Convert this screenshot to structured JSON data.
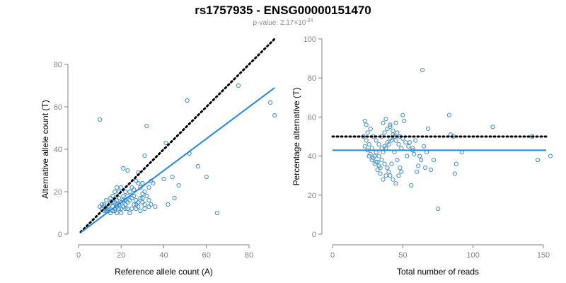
{
  "header": {
    "title": "rs1757935 - ENSG00000151470",
    "subtitle_prefix": "p-value: 2.17×10",
    "subtitle_exponent": "-24"
  },
  "colors": {
    "point": "#3a8fd0",
    "fit_line": "#1e88e5",
    "reference_line": "#000000",
    "axis": "#808080"
  },
  "chart_data": [
    {
      "type": "scatter",
      "xlabel": "Reference allele count (A)",
      "ylabel": "Alternative allele count (T)",
      "xlim": [
        0,
        92
      ],
      "ylim": [
        0,
        80
      ],
      "xticks": [
        0,
        20,
        40,
        60,
        80
      ],
      "yticks": [
        0,
        20,
        40,
        60,
        80
      ],
      "reference_line": {
        "style": "dotted",
        "slope": 1,
        "intercept": 0,
        "x_range": [
          1,
          92
        ]
      },
      "fit_line": {
        "slope": 0.75,
        "intercept": 0,
        "x_range": [
          1,
          92
        ]
      },
      "points": [
        [
          10,
          54
        ],
        [
          32,
          51
        ],
        [
          51,
          63
        ],
        [
          75,
          70
        ],
        [
          90,
          62
        ],
        [
          92,
          56
        ],
        [
          41,
          43
        ],
        [
          52,
          38
        ],
        [
          56,
          32
        ],
        [
          60,
          27
        ],
        [
          65,
          10
        ],
        [
          47,
          23
        ],
        [
          44,
          27
        ],
        [
          40,
          26
        ],
        [
          45,
          17
        ],
        [
          42,
          14
        ],
        [
          31,
          37
        ],
        [
          28,
          29
        ],
        [
          21,
          31
        ],
        [
          23,
          30
        ],
        [
          27,
          25
        ],
        [
          30,
          24
        ],
        [
          33,
          22
        ],
        [
          34,
          25
        ],
        [
          36,
          13
        ],
        [
          31,
          12
        ],
        [
          24,
          10
        ],
        [
          18,
          10
        ],
        [
          19,
          12
        ],
        [
          20,
          15
        ],
        [
          22,
          20
        ],
        [
          20,
          22
        ],
        [
          18,
          22
        ],
        [
          17,
          20
        ],
        [
          16,
          18
        ],
        [
          15,
          15
        ],
        [
          14,
          13
        ],
        [
          13,
          12
        ],
        [
          12,
          11
        ],
        [
          11,
          14
        ],
        [
          10,
          13
        ],
        [
          12,
          14
        ],
        [
          13,
          11
        ],
        [
          14,
          12
        ],
        [
          15,
          10
        ],
        [
          16,
          11
        ],
        [
          17,
          12
        ],
        [
          18,
          13
        ],
        [
          19,
          14
        ],
        [
          20,
          12
        ],
        [
          21,
          13
        ],
        [
          22,
          14
        ],
        [
          23,
          15
        ],
        [
          24,
          16
        ],
        [
          25,
          17
        ],
        [
          26,
          18
        ],
        [
          27,
          16
        ],
        [
          28,
          15
        ],
        [
          29,
          17
        ],
        [
          30,
          19
        ],
        [
          31,
          20
        ],
        [
          32,
          18
        ],
        [
          33,
          16
        ],
        [
          34,
          14
        ],
        [
          35,
          24
        ],
        [
          18,
          16
        ],
        [
          19,
          17
        ],
        [
          21,
          16
        ],
        [
          22,
          12
        ],
        [
          23,
          18
        ],
        [
          24,
          20
        ],
        [
          25,
          22
        ],
        [
          26,
          21
        ],
        [
          27,
          14
        ],
        [
          28,
          13
        ],
        [
          29,
          11
        ],
        [
          30,
          15
        ],
        [
          15,
          17
        ],
        [
          16,
          13
        ],
        [
          17,
          15
        ],
        [
          12,
          13
        ],
        [
          13,
          16
        ],
        [
          14,
          11
        ],
        [
          11,
          12
        ],
        [
          20,
          10
        ],
        [
          21,
          18
        ],
        [
          19,
          20
        ],
        [
          26,
          14
        ],
        [
          25,
          12
        ],
        [
          28,
          24
        ],
        [
          23,
          12
        ],
        [
          22,
          16
        ],
        [
          18,
          14
        ],
        [
          17,
          11
        ],
        [
          16,
          15
        ],
        [
          27,
          12
        ],
        [
          29,
          22
        ],
        [
          30,
          17
        ],
        [
          31,
          14
        ],
        [
          33,
          13
        ]
      ]
    },
    {
      "type": "scatter",
      "xlabel": "Total number of reads",
      "ylabel": "Percentage alternative (T)",
      "xlim": [
        0,
        155
      ],
      "ylim": [
        0,
        100
      ],
      "xticks": [
        0,
        50,
        100,
        150
      ],
      "yticks": [
        0,
        20,
        40,
        60,
        80,
        100
      ],
      "reference_line": {
        "style": "dotted",
        "y": 50,
        "x_range": [
          0,
          152
        ]
      },
      "fit_line": {
        "y": 43,
        "x_range": [
          0,
          152
        ]
      },
      "points": [
        [
          64,
          84
        ],
        [
          83,
          61
        ],
        [
          114,
          55
        ],
        [
          50,
          61
        ],
        [
          38,
          59
        ],
        [
          23,
          58
        ],
        [
          24,
          56
        ],
        [
          36,
          57
        ],
        [
          41,
          55
        ],
        [
          45,
          57
        ],
        [
          51,
          58
        ],
        [
          68,
          54
        ],
        [
          84,
          51
        ],
        [
          86,
          50
        ],
        [
          142,
          50
        ],
        [
          155,
          40
        ],
        [
          146,
          38
        ],
        [
          92,
          42
        ],
        [
          88,
          36
        ],
        [
          87,
          31
        ],
        [
          75,
          13
        ],
        [
          70,
          33
        ],
        [
          72,
          38
        ],
        [
          66,
          34
        ],
        [
          60,
          32
        ],
        [
          58,
          41
        ],
        [
          56,
          25
        ],
        [
          53,
          40
        ],
        [
          48,
          34
        ],
        [
          46,
          38
        ],
        [
          44,
          42
        ],
        [
          42,
          36
        ],
        [
          40,
          32
        ],
        [
          38,
          30
        ],
        [
          36,
          28
        ],
        [
          34,
          34
        ],
        [
          32,
          37
        ],
        [
          30,
          40
        ],
        [
          28,
          44
        ],
        [
          26,
          46
        ],
        [
          24,
          48
        ],
        [
          22,
          50
        ],
        [
          25,
          52
        ],
        [
          27,
          54
        ],
        [
          29,
          50
        ],
        [
          31,
          48
        ],
        [
          33,
          46
        ],
        [
          35,
          44
        ],
        [
          37,
          45
        ],
        [
          39,
          47
        ],
        [
          41,
          49
        ],
        [
          43,
          51
        ],
        [
          45,
          48
        ],
        [
          47,
          46
        ],
        [
          49,
          44
        ],
        [
          52,
          47
        ],
        [
          54,
          45
        ],
        [
          57,
          43
        ],
        [
          59,
          48
        ],
        [
          62,
          40
        ],
        [
          65,
          45
        ],
        [
          31,
          42
        ],
        [
          33,
          40
        ],
        [
          35,
          38
        ],
        [
          37,
          36
        ],
        [
          39,
          34
        ],
        [
          41,
          30
        ],
        [
          43,
          28
        ],
        [
          45,
          26
        ],
        [
          47,
          30
        ],
        [
          49,
          32
        ],
        [
          26,
          40
        ],
        [
          28,
          38
        ],
        [
          30,
          36
        ],
        [
          32,
          33
        ],
        [
          34,
          31
        ],
        [
          36,
          42
        ],
        [
          38,
          44
        ],
        [
          40,
          46
        ],
        [
          42,
          48
        ],
        [
          44,
          50
        ],
        [
          46,
          52
        ],
        [
          48,
          50
        ],
        [
          50,
          49
        ],
        [
          23,
          45
        ],
        [
          25,
          43
        ],
        [
          27,
          41
        ],
        [
          29,
          39
        ],
        [
          31,
          37
        ],
        [
          33,
          35
        ],
        [
          35,
          50
        ],
        [
          37,
          52
        ],
        [
          39,
          54
        ],
        [
          41,
          56
        ],
        [
          43,
          53
        ],
        [
          55,
          47
        ],
        [
          57,
          44
        ],
        [
          61,
          35
        ],
        [
          63,
          38
        ],
        [
          67,
          42
        ]
      ]
    }
  ]
}
